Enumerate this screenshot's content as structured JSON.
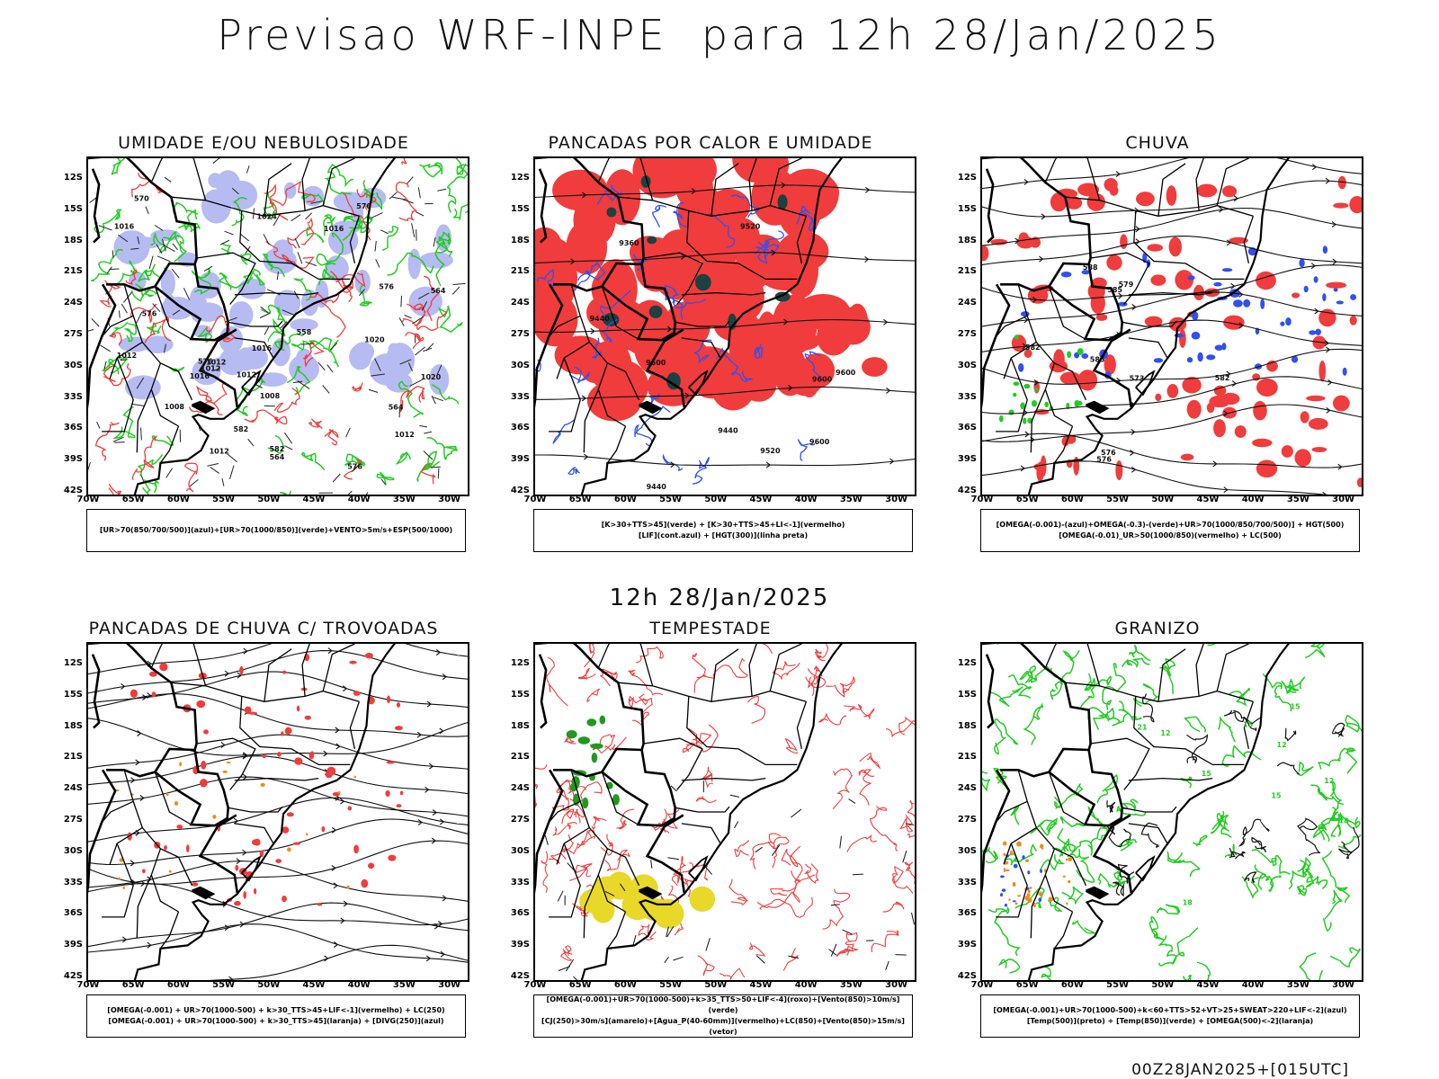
{
  "header": {
    "title": "Previsao WRF-INPE  para 12h 28/Jan/2025"
  },
  "mid_title": "12h 28/Jan/2025",
  "footer": {
    "run": "00Z28JAN2025+[015UTC]"
  },
  "axes": {
    "lat_labels": [
      "12S",
      "15S",
      "18S",
      "21S",
      "24S",
      "27S",
      "30S",
      "33S",
      "36S",
      "39S",
      "42S"
    ],
    "lon_labels": [
      "70W",
      "65W",
      "60W",
      "55W",
      "50W",
      "45W",
      "40W",
      "35W",
      "30W"
    ],
    "lat_range_deg": [
      -42,
      -10
    ],
    "lon_range_deg": [
      -70,
      -28
    ]
  },
  "colors": {
    "green": "#22cc22",
    "red": "#f03c3c",
    "blue": "#3050f0",
    "lightblue": "#aab0f0",
    "yellow": "#e8d828",
    "orange": "#f08a20",
    "darkgreen": "#1d4040"
  },
  "panels": [
    {
      "title": "UMIDADE E/OU NEBULOSIDADE",
      "legend": [
        "[UR>70(850/700/500)](azul)+[UR>70(1000/850)](verde)+VENTO>5m/s+ESP(500/1000)"
      ],
      "contour_labels": [
        "1012",
        "1012",
        "1012",
        "1008",
        "1012",
        "1008",
        "1012",
        "1012",
        "1016",
        "1016",
        "1016",
        "1016",
        "1020",
        "1020",
        "1024",
        "576",
        "576",
        "570",
        "576",
        "564",
        "564",
        "558",
        "582",
        "576",
        "570",
        "582",
        "564"
      ]
    },
    {
      "title": "PANCADAS POR CALOR E UMIDADE",
      "legend": [
        "[K>30+TTS>45](verde) + [K>30+TTS>45+LI<-1](vermelho)",
        "[LIF](cont.azul) + [HGT(300)](linha preta)"
      ],
      "contour_labels": [
        "9600",
        "9600",
        "9520",
        "9600",
        "9600",
        "9520",
        "9440",
        "9440",
        "9360",
        "9440"
      ]
    },
    {
      "title": "CHUVA",
      "legend": [
        "[OMEGA(-0.001)-(azul)+OMEGA(-0.3)-(verde)+UR>70(1000/850/700/500)] + HGT(500)",
        "[OMEGA(-0.01)_UR>50(1000/850)(vermelho) + LC(500)"
      ],
      "contour_labels": [
        "585",
        "582",
        "579",
        "576",
        "573",
        "582",
        "588",
        "576",
        "585"
      ]
    },
    {
      "title": "PANCADAS DE CHUVA C/ TROVOADAS",
      "legend": [
        "[OMEGA(-0.001) + UR>70(1000-500) + k>30_TTS>45+LIF<-1](vermelho) + LC(250)",
        "[OMEGA(-0.001) + UR>70(1000-500) + k>30_TTS>45](laranja) + [DIVG(250)](azul)"
      ],
      "contour_labels": []
    },
    {
      "title": "TEMPESTADE",
      "legend": [
        "[OMEGA(-0.001)+UR>70(1000-500)+k>35_TTS>50+LIF<-4](roxo)+[Vento(850)>10m/s](verde)",
        "[CJ(250)>30m/s](amarelo)+[Agua_P(40-60mm)](vermelho)+LC(850)+[Vento(850)>15m/s](vetor)"
      ],
      "contour_labels": []
    },
    {
      "title": "GRANIZO",
      "legend": [
        "[OMEGA(-0.001)+UR>70(1000-500)+k<60+TTS>52+VT>25+SWEAT>220+LIF<-2](azul)",
        "[Temp(500)](preto) + [Temp(850)](verde) + [OMEGA(500)<-2](laranja)"
      ],
      "contour_labels": [
        "12",
        "15",
        "18",
        "15",
        "12",
        "15",
        "21",
        "18",
        "15",
        "12"
      ]
    }
  ]
}
